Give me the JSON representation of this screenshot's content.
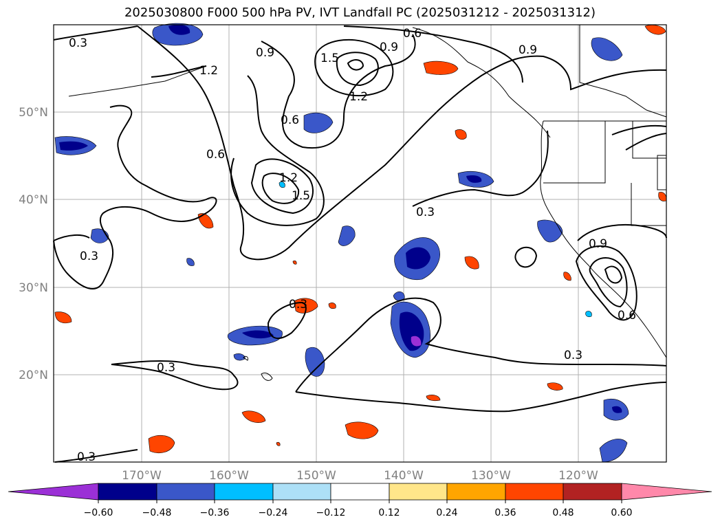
{
  "title": "2025030800 F000 500 hPa PV, IVT Landfall PC (2025031212 - 2025031312)",
  "lon_labels": [
    "170°W",
    "160°W",
    "150°W",
    "140°W",
    "130°W",
    "120°W"
  ],
  "lat_labels": [
    "50°N",
    "40°N",
    "30°N",
    "20°N"
  ],
  "contour_labels": [
    "0.3",
    "0.3",
    "0.3",
    "0.3",
    "0.3",
    "0.3",
    "0.3",
    "0.6",
    "0.6",
    "0.6",
    "0.6",
    "0.9",
    "0.9",
    "0.9",
    "0.9",
    "1.2",
    "1.2",
    "1.5",
    "1.5",
    "1.2"
  ],
  "colorbar": {
    "ticks": [
      "−0.60",
      "−0.48",
      "−0.36",
      "−0.24",
      "−0.12",
      "0.12",
      "0.24",
      "0.36",
      "0.48",
      "0.60"
    ],
    "colors": [
      "#9b30d6",
      "#00008b",
      "#3a57c9",
      "#00bfff",
      "#ade0f7",
      "#ffffff",
      "#ffe68a",
      "#ffa500",
      "#ff4500",
      "#b22222",
      "#ff88aa"
    ]
  },
  "colors": {
    "land_line": "#000000",
    "grid": "#b0b0b0",
    "axis_label": "#808080"
  }
}
